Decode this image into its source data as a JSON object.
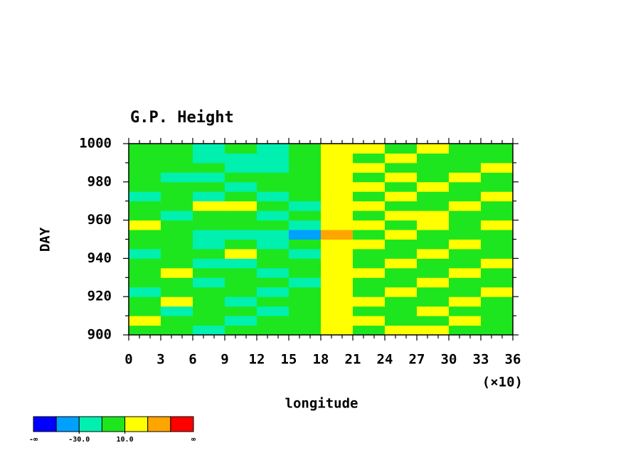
{
  "chart_data": {
    "type": "heatmap",
    "title": "G.P. Height",
    "x_label": "longitude",
    "x_scale_label": "(×10)",
    "y_label": "DAY",
    "xlim": [
      0,
      36
    ],
    "ylim": [
      900,
      1000
    ],
    "xticks": [
      0,
      3,
      6,
      9,
      12,
      15,
      18,
      21,
      24,
      27,
      30,
      33,
      36
    ],
    "xminorticks": [
      1,
      2,
      4,
      5,
      7,
      8,
      10,
      11,
      13,
      14,
      16,
      17,
      19,
      20,
      22,
      23,
      25,
      26,
      28,
      29,
      31,
      32,
      34,
      35
    ],
    "yticks": [
      900,
      920,
      940,
      960,
      980,
      1000
    ],
    "yminorticks": [
      910,
      930,
      950,
      970,
      990
    ],
    "x_edges": [
      0,
      3,
      6,
      9,
      12,
      15,
      18,
      21,
      24,
      27,
      30,
      33,
      36
    ],
    "y_edges": [
      900,
      905,
      910,
      915,
      920,
      925,
      930,
      935,
      940,
      945,
      950,
      955,
      960,
      965,
      970,
      975,
      980,
      985,
      990,
      995,
      1000
    ],
    "z": [
      [
        2,
        -8,
        -14,
        0,
        -6,
        4,
        18,
        9,
        22,
        14,
        6,
        -3
      ],
      [
        12,
        5,
        -3,
        -11,
        2,
        -4,
        11,
        15,
        4,
        8,
        13,
        2
      ],
      [
        -6,
        -15,
        -2,
        8,
        -12,
        -3,
        16,
        6,
        -2,
        12,
        -8,
        5
      ],
      [
        4,
        12,
        -5,
        -18,
        -6,
        3,
        22,
        12,
        8,
        -4,
        14,
        9
      ],
      [
        -12,
        -3,
        6,
        -8,
        -22,
        -9,
        13,
        4,
        16,
        9,
        -5,
        11
      ],
      [
        8,
        -2,
        -13,
        3,
        -4,
        -14,
        12,
        -6,
        7,
        18,
        4,
        -2
      ],
      [
        -3,
        14,
        4,
        -9,
        -16,
        -5,
        19,
        11,
        -3,
        6,
        15,
        7
      ],
      [
        5,
        -7,
        -18,
        -12,
        -3,
        2,
        24,
        8,
        14,
        -5,
        3,
        12
      ],
      [
        -14,
        -5,
        3,
        11,
        -8,
        -20,
        15,
        -4,
        9,
        12,
        -9,
        4
      ],
      [
        6,
        -10,
        -22,
        -6,
        -13,
        -4,
        18,
        13,
        -2,
        7,
        16,
        -3
      ],
      [
        -4,
        3,
        -12,
        -19,
        -25,
        -32,
        36,
        9,
        14,
        -6,
        5,
        8
      ],
      [
        13,
        6,
        -3,
        -10,
        -7,
        -15,
        21,
        14,
        5,
        11,
        -4,
        13
      ],
      [
        -9,
        -16,
        -6,
        2,
        -11,
        -5,
        17,
        -3,
        12,
        18,
        8,
        -7
      ],
      [
        3,
        -4,
        12,
        15,
        -2,
        -12,
        26,
        10,
        -5,
        6,
        13,
        2
      ],
      [
        -11,
        -6,
        -15,
        -8,
        -18,
        -9,
        14,
        6,
        16,
        3,
        -8,
        11
      ],
      [
        7,
        -2,
        -9,
        -14,
        -4,
        3,
        23,
        12,
        4,
        15,
        9,
        -4
      ],
      [
        -5,
        -13,
        -24,
        -10,
        -3,
        -7,
        19,
        -2,
        11,
        6,
        14,
        8
      ],
      [
        4,
        9,
        -3,
        -12,
        -17,
        -4,
        16,
        13,
        -6,
        9,
        3,
        12
      ],
      [
        -8,
        -3,
        -11,
        -20,
        -14,
        -6,
        12,
        8,
        15,
        -3,
        7,
        4
      ],
      [
        6,
        -4,
        -16,
        -8,
        -12,
        2,
        15,
        11,
        6,
        13,
        -5,
        9
      ]
    ],
    "colorbar": {
      "boundaries": [
        -50,
        -30,
        -10,
        10,
        30,
        50
      ],
      "colors": [
        "#0000ff",
        "#00a0ff",
        "#00f0b0",
        "#1ee61e",
        "#ffff00",
        "#ffa500",
        "#ff0000"
      ],
      "min_label": "-∞",
      "max_label": "∞",
      "ticks": [
        {
          "value": -30,
          "label": "-30.0"
        },
        {
          "value": 10,
          "label": "10.0"
        }
      ]
    }
  }
}
